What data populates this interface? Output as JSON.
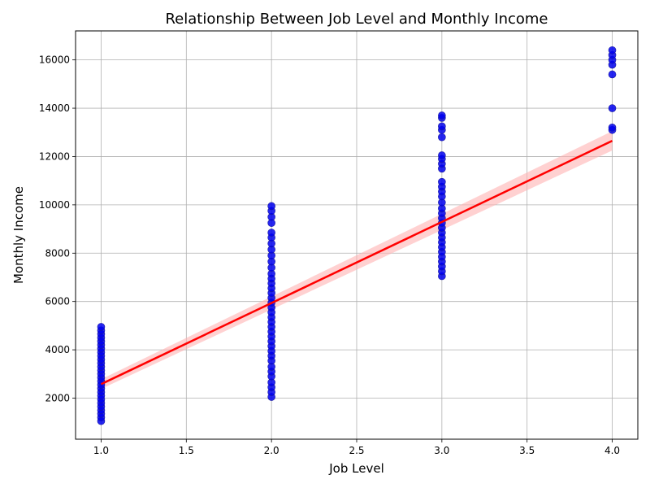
{
  "chart_data": {
    "type": "scatter",
    "title": "Relationship Between Job Level and Monthly Income",
    "xlabel": "Job Level",
    "ylabel": "Monthly Income",
    "xlim": [
      0.85,
      4.15
    ],
    "ylim": [
      300,
      17200
    ],
    "xticks": [
      1.0,
      1.5,
      2.0,
      2.5,
      3.0,
      3.5,
      4.0
    ],
    "xtick_labels": [
      "1.0",
      "1.5",
      "2.0",
      "2.5",
      "3.0",
      "3.5",
      "4.0"
    ],
    "yticks": [
      2000,
      4000,
      6000,
      8000,
      10000,
      12000,
      14000,
      16000
    ],
    "ytick_labels": [
      "2000",
      "4000",
      "6000",
      "8000",
      "10000",
      "12000",
      "14000",
      "16000"
    ],
    "grid": true,
    "colors": {
      "points": "#0000ee",
      "regression": "#ff0000",
      "confidence_band": "#ffb3b3"
    },
    "series": [
      {
        "kind": "points",
        "points": [
          [
            1,
            1050
          ],
          [
            1,
            1200
          ],
          [
            1,
            1350
          ],
          [
            1,
            1500
          ],
          [
            1,
            1650
          ],
          [
            1,
            1800
          ],
          [
            1,
            1950
          ],
          [
            1,
            2100
          ],
          [
            1,
            2250
          ],
          [
            1,
            2400
          ],
          [
            1,
            2550
          ],
          [
            1,
            2700
          ],
          [
            1,
            2850
          ],
          [
            1,
            3000
          ],
          [
            1,
            3150
          ],
          [
            1,
            3300
          ],
          [
            1,
            3450
          ],
          [
            1,
            3600
          ],
          [
            1,
            3750
          ],
          [
            1,
            3900
          ],
          [
            1,
            4050
          ],
          [
            1,
            4200
          ],
          [
            1,
            4350
          ],
          [
            1,
            4500
          ],
          [
            1,
            4650
          ],
          [
            1,
            4800
          ],
          [
            1,
            4950
          ],
          [
            2,
            2050
          ],
          [
            2,
            2250
          ],
          [
            2,
            2450
          ],
          [
            2,
            2650
          ],
          [
            2,
            2900
          ],
          [
            2,
            3100
          ],
          [
            2,
            3300
          ],
          [
            2,
            3550
          ],
          [
            2,
            3750
          ],
          [
            2,
            3950
          ],
          [
            2,
            4150
          ],
          [
            2,
            4350
          ],
          [
            2,
            4550
          ],
          [
            2,
            4750
          ],
          [
            2,
            4950
          ],
          [
            2,
            5150
          ],
          [
            2,
            5350
          ],
          [
            2,
            5550
          ],
          [
            2,
            5750
          ],
          [
            2,
            5950
          ],
          [
            2,
            6150
          ],
          [
            2,
            6350
          ],
          [
            2,
            6550
          ],
          [
            2,
            6750
          ],
          [
            2,
            6950
          ],
          [
            2,
            7150
          ],
          [
            2,
            7400
          ],
          [
            2,
            7650
          ],
          [
            2,
            7900
          ],
          [
            2,
            8150
          ],
          [
            2,
            8400
          ],
          [
            2,
            8650
          ],
          [
            2,
            8850
          ],
          [
            2,
            9250
          ],
          [
            2,
            9500
          ],
          [
            2,
            9750
          ],
          [
            2,
            9950
          ],
          [
            3,
            7050
          ],
          [
            3,
            7250
          ],
          [
            3,
            7450
          ],
          [
            3,
            7650
          ],
          [
            3,
            7850
          ],
          [
            3,
            8050
          ],
          [
            3,
            8250
          ],
          [
            3,
            8450
          ],
          [
            3,
            8650
          ],
          [
            3,
            8850
          ],
          [
            3,
            9050
          ],
          [
            3,
            9250
          ],
          [
            3,
            9450
          ],
          [
            3,
            9650
          ],
          [
            3,
            9850
          ],
          [
            3,
            10100
          ],
          [
            3,
            10350
          ],
          [
            3,
            10550
          ],
          [
            3,
            10750
          ],
          [
            3,
            10950
          ],
          [
            3,
            11500
          ],
          [
            3,
            11700
          ],
          [
            3,
            11900
          ],
          [
            3,
            12050
          ],
          [
            3,
            12800
          ],
          [
            3,
            13100
          ],
          [
            3,
            13250
          ],
          [
            3,
            13600
          ],
          [
            3,
            13700
          ],
          [
            4,
            13100
          ],
          [
            4,
            13200
          ],
          [
            4,
            14000
          ],
          [
            4,
            15400
          ],
          [
            4,
            15800
          ],
          [
            4,
            16000
          ],
          [
            4,
            16200
          ],
          [
            4,
            16400
          ]
        ]
      },
      {
        "kind": "regression",
        "x": [
          1.0,
          4.0
        ],
        "y": [
          2580,
          12650
        ],
        "ci_lower": [
          2380,
          12250
        ],
        "ci_upper": [
          2780,
          13050
        ]
      }
    ]
  }
}
